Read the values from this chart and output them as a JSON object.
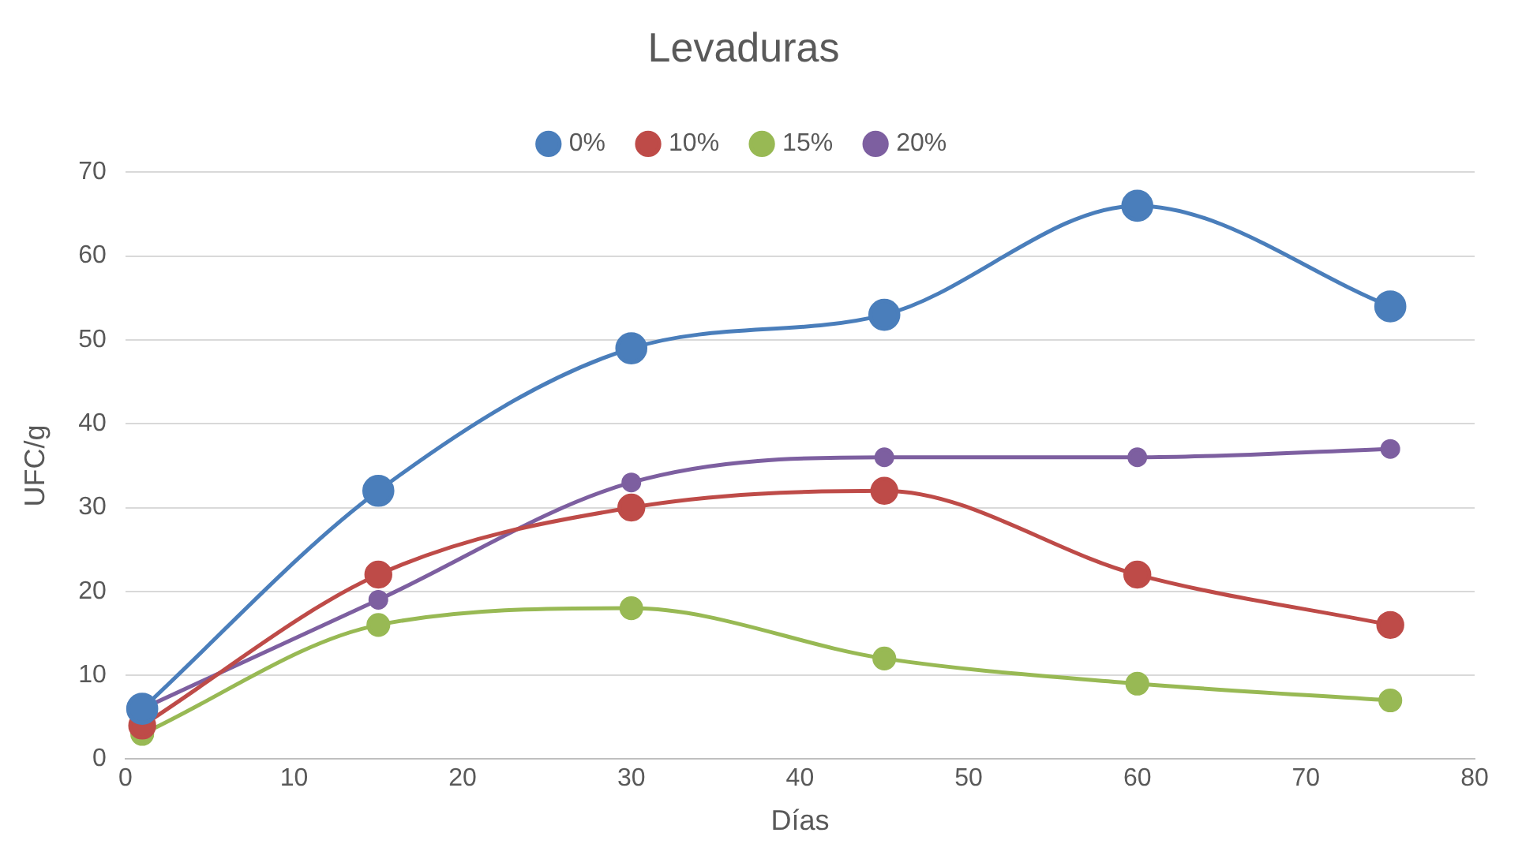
{
  "chart_data": {
    "type": "line",
    "title": "Levaduras",
    "xlabel": "Días",
    "ylabel": "UFC/g",
    "x": [
      1,
      15,
      30,
      45,
      60,
      75
    ],
    "series": [
      {
        "name": "0%",
        "color": "#4a7ebb",
        "values": [
          6,
          32,
          49,
          53,
          66,
          54
        ]
      },
      {
        "name": "10%",
        "color": "#be4b48",
        "values": [
          4,
          22,
          30,
          32,
          22,
          16
        ]
      },
      {
        "name": "15%",
        "color": "#98b954",
        "values": [
          3,
          16,
          18,
          12,
          9,
          7
        ]
      },
      {
        "name": "20%",
        "color": "#7d5fa0",
        "values": [
          6,
          19,
          33,
          36,
          36,
          37
        ]
      }
    ],
    "xlim": [
      0,
      80
    ],
    "xticks": [
      0,
      10,
      20,
      30,
      40,
      50,
      60,
      70,
      80
    ],
    "ylim": [
      0,
      70
    ],
    "yticks": [
      0,
      10,
      20,
      30,
      40,
      50,
      60,
      70
    ],
    "grid": "y",
    "legend": "top",
    "marker": "circle",
    "line_style": "solid"
  }
}
